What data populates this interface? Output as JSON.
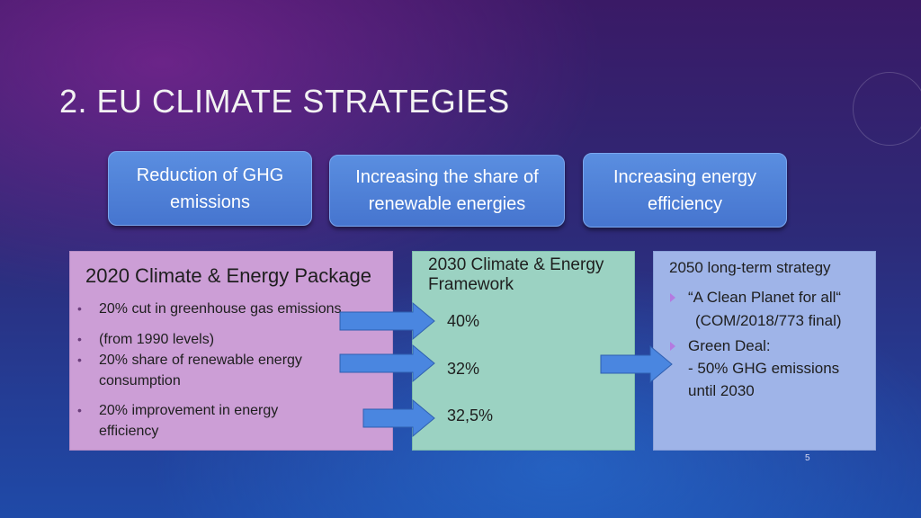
{
  "slide": {
    "title": "2. EU CLIMATE STRATEGIES",
    "page_number": "5"
  },
  "goals": [
    {
      "label": "Reduction of GHG\nemissions"
    },
    {
      "label": "Increasing the share of\nrenewable energies"
    },
    {
      "label": "Increasing energy\nefficiency"
    }
  ],
  "package_2020": {
    "title": "2020 Climate & Energy Package",
    "bullets": [
      "20% cut in greenhouse gas emissions",
      "(from 1990 levels)",
      "20% share of renewable energy\nconsumption",
      "20% improvement in energy\nefficiency"
    ],
    "bullet_glyph": "•"
  },
  "framework_2030": {
    "title": "2030 Climate & Energy\nFramework",
    "values": [
      "40%",
      "32%",
      "32,5%"
    ]
  },
  "strategy_2050": {
    "title": "2050 long-term strategy",
    "items": [
      "“A Clean Planet for all“",
      "(COM/2018/773 final)",
      "Green Deal:",
      "- 50% GHG emissions",
      "until 2030"
    ]
  },
  "colors": {
    "pill_fill": "#4f82d8",
    "panel_2020": "#cc9ed6",
    "panel_2030": "#9bd2c2",
    "panel_2050": "#9fb4e8",
    "arrow_fill": "#4a86e0"
  }
}
